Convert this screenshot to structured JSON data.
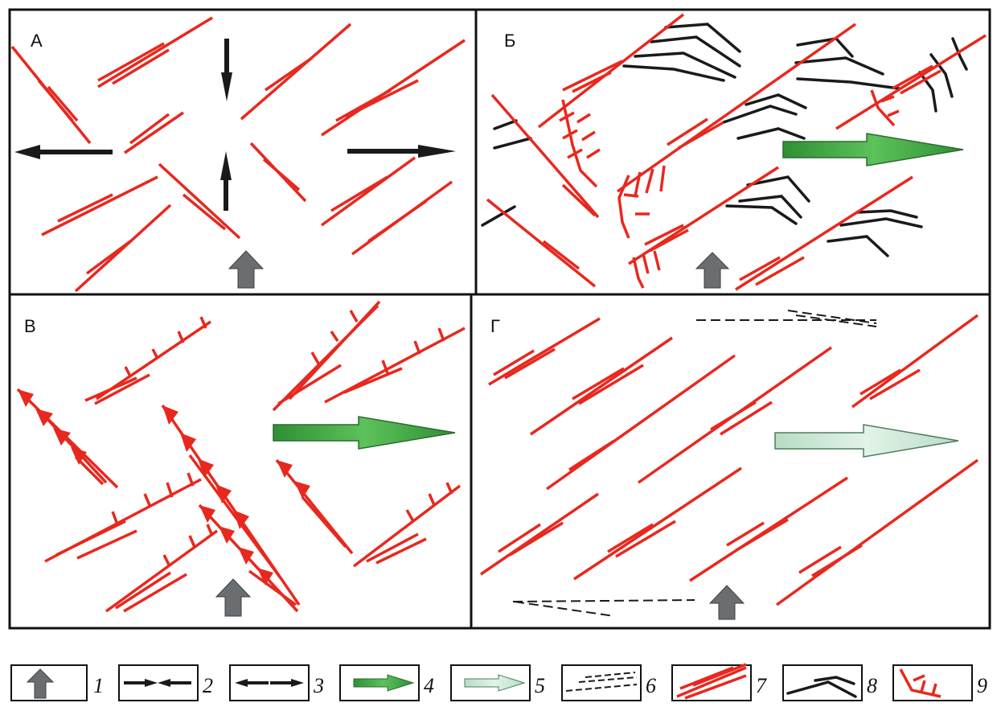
{
  "panels": [
    {
      "id": "A",
      "label": "А"
    },
    {
      "id": "B",
      "label": "Б"
    },
    {
      "id": "V",
      "label": "В"
    },
    {
      "id": "G",
      "label": "Г"
    }
  ],
  "legend": [
    {
      "number": "1",
      "symbol": "gray-block-arrow"
    },
    {
      "number": "2",
      "symbol": "converging-arrows"
    },
    {
      "number": "3",
      "symbol": "diverging-arrows"
    },
    {
      "number": "4",
      "symbol": "green-arrow"
    },
    {
      "number": "5",
      "symbol": "pale-green-arrow"
    },
    {
      "number": "6",
      "symbol": "dashed-lines"
    },
    {
      "number": "7",
      "symbol": "en-echelon-faults"
    },
    {
      "number": "8",
      "symbol": "black-curved-lines"
    },
    {
      "number": "9",
      "symbol": "ticked-fault"
    }
  ],
  "colors": {
    "fault": "#e8281e",
    "black": "#1a1a1a",
    "gray_arrow": "#6b6e70",
    "green_arrow": "#4fae48",
    "pale_green_arrow": "#cfe9d6",
    "frame": "#111111"
  }
}
